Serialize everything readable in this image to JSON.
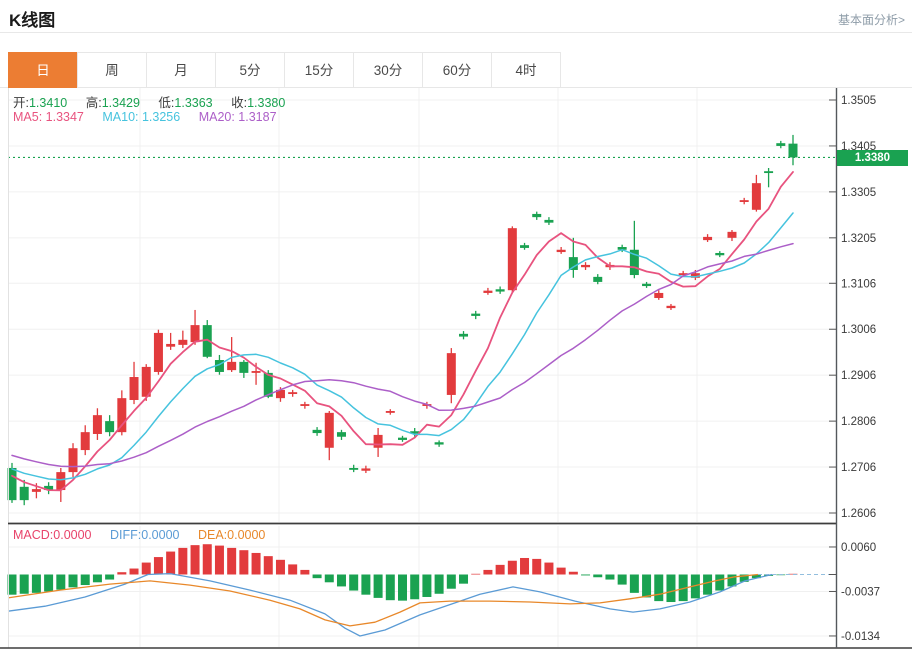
{
  "header": {
    "title": "K线图",
    "link": "基本面分析>"
  },
  "tabs": {
    "active_index": 0,
    "items": [
      {
        "label": "日"
      },
      {
        "label": "周"
      },
      {
        "label": "月"
      },
      {
        "label": "5分"
      },
      {
        "label": "15分"
      },
      {
        "label": "30分"
      },
      {
        "label": "60分"
      },
      {
        "label": "4时"
      }
    ]
  },
  "legend": {
    "open_label": "开:",
    "open_value": "1.3410",
    "high_label": "高:",
    "high_value": "1.3429",
    "low_label": "低:",
    "low_value": "1.3363",
    "close_label": "收:",
    "close_value": "1.3380",
    "ma5": "MA5: 1.3347",
    "ma10": "MA10: 1.3256",
    "ma20": "MA20: 1.3187"
  },
  "macd_legend": {
    "macd": "MACD:0.0000",
    "diff": "DIFF:0.0000",
    "dea": "DEA:0.0000"
  },
  "price_badge": "1.3380",
  "colors": {
    "up": "#e23b3d",
    "down": "#1aa251",
    "accent_tab": "#ec7d33",
    "ma5": "#e8537f",
    "ma10": "#46c3de",
    "ma20": "#ac5fc8",
    "diff_line": "#5b9bd5",
    "dea_line": "#e8882a",
    "grid": "#f0f0f0",
    "axis": "#54585c",
    "badge_bg": "#1aa251",
    "price_dotted_line": "#1aa251",
    "zero_dashed_line": "#92bede"
  },
  "chart_data": {
    "type": "candlestick+macd",
    "title": "K线图",
    "price_axis": {
      "labels": [
        "1.3505",
        "1.3405",
        "1.3305",
        "1.3205",
        "1.3106",
        "1.3006",
        "1.2906",
        "1.2806",
        "1.2706",
        "1.2606"
      ],
      "top_value": 1.3505,
      "bottom_value": 1.2606
    },
    "current_price": 1.338,
    "ohlc_current": {
      "open": 1.341,
      "high": 1.3429,
      "low": 1.3363,
      "close": 1.338
    },
    "ma_values": {
      "ma5": 1.3347,
      "ma10": 1.3256,
      "ma20": 1.3187
    },
    "ma_periods": [
      5,
      10,
      20
    ],
    "ma_seed_closes": [
      1.2788,
      1.2782,
      1.2776,
      1.277,
      1.2764,
      1.2758,
      1.2752,
      1.2746,
      1.274,
      1.2734,
      1.2728,
      1.2722,
      1.2716,
      1.2711,
      1.2707,
      1.2704,
      1.2701,
      1.2699,
      1.2697
    ],
    "candles": [
      [
        1.2704,
        1.2715,
        1.2628,
        1.2634
      ],
      [
        1.2663,
        1.2678,
        1.2623,
        1.2634
      ],
      [
        1.2652,
        1.2671,
        1.2638,
        1.2658
      ],
      [
        1.2665,
        1.2673,
        1.2647,
        1.2656
      ],
      [
        1.2656,
        1.2704,
        1.263,
        1.2695
      ],
      [
        1.2695,
        1.2758,
        1.2684,
        1.2747
      ],
      [
        1.2743,
        1.2797,
        1.2732,
        1.2782
      ],
      [
        1.2778,
        1.2834,
        1.2765,
        1.2819
      ],
      [
        1.2806,
        1.2819,
        1.2773,
        1.2782
      ],
      [
        1.2782,
        1.2873,
        1.2775,
        1.2856
      ],
      [
        1.2852,
        1.2935,
        1.2843,
        1.2902
      ],
      [
        1.2859,
        1.293,
        1.285,
        1.2924
      ],
      [
        1.2913,
        1.3005,
        1.2907,
        1.2998
      ],
      [
        1.2968,
        1.2998,
        1.2961,
        1.2974
      ],
      [
        1.2972,
        1.3003,
        1.2965,
        1.2983
      ],
      [
        1.2978,
        1.3048,
        1.2972,
        1.3015
      ],
      [
        1.3015,
        1.3026,
        1.2943,
        1.2946
      ],
      [
        1.2939,
        1.295,
        1.2907,
        1.2913
      ],
      [
        1.2917,
        1.2989,
        1.2913,
        1.2935
      ],
      [
        1.2935,
        1.2939,
        1.29,
        1.2911
      ],
      [
        1.2911,
        1.2933,
        1.2885,
        1.2915
      ],
      [
        1.2911,
        1.2917,
        1.2856,
        1.2859
      ],
      [
        1.2856,
        1.288,
        1.2848,
        1.2874
      ],
      [
        1.2865,
        1.2874,
        1.2859,
        1.2869
      ],
      [
        1.2839,
        1.2848,
        1.2833,
        1.2843
      ],
      [
        1.2787,
        1.2793,
        1.2774,
        1.278
      ],
      [
        1.2748,
        1.2828,
        1.2721,
        1.2824
      ],
      [
        1.2782,
        1.2787,
        1.2765,
        1.2772
      ],
      [
        1.2704,
        1.2711,
        1.2695,
        1.27
      ],
      [
        1.2698,
        1.2709,
        1.2693,
        1.2703
      ],
      [
        1.2748,
        1.2791,
        1.2728,
        1.2776
      ],
      [
        1.2824,
        1.2832,
        1.282,
        1.2828
      ],
      [
        1.277,
        1.2774,
        1.2761,
        1.2765
      ],
      [
        1.2784,
        1.2791,
        1.2772,
        1.2779
      ],
      [
        1.2839,
        1.2848,
        1.2833,
        1.2843
      ],
      [
        1.276,
        1.2764,
        1.275,
        1.2755
      ],
      [
        1.2863,
        1.2965,
        1.2845,
        1.2954
      ],
      [
        1.2996,
        1.3002,
        1.2984,
        1.299
      ],
      [
        1.304,
        1.3046,
        1.3028,
        1.3035
      ],
      [
        1.3085,
        1.3096,
        1.3081,
        1.309
      ],
      [
        1.3093,
        1.3099,
        1.3083,
        1.3088
      ],
      [
        1.3091,
        1.323,
        1.3087,
        1.3226
      ],
      [
        1.3189,
        1.3194,
        1.3179,
        1.3183
      ],
      [
        1.3257,
        1.3262,
        1.3244,
        1.325
      ],
      [
        1.3244,
        1.325,
        1.3233,
        1.3238
      ],
      [
        1.3174,
        1.3185,
        1.317,
        1.3179
      ],
      [
        1.3163,
        1.3205,
        1.3118,
        1.3135
      ],
      [
        1.3141,
        1.3152,
        1.3135,
        1.3146
      ],
      [
        1.312,
        1.3126,
        1.3104,
        1.3109
      ],
      [
        1.3141,
        1.3152,
        1.3135,
        1.3146
      ],
      [
        1.3185,
        1.319,
        1.3174,
        1.3179
      ],
      [
        1.3179,
        1.3242,
        1.3117,
        1.3124
      ],
      [
        1.3105,
        1.3109,
        1.3096,
        1.31
      ],
      [
        1.3074,
        1.3091,
        1.307,
        1.3085
      ],
      [
        1.3052,
        1.3061,
        1.3048,
        1.3057
      ],
      [
        1.3124,
        1.3133,
        1.312,
        1.3128
      ],
      [
        1.3118,
        1.3135,
        1.3113,
        1.3128
      ],
      [
        1.32,
        1.3213,
        1.3196,
        1.3207
      ],
      [
        1.3172,
        1.3176,
        1.3163,
        1.3167
      ],
      [
        1.3205,
        1.3222,
        1.3198,
        1.3218
      ],
      [
        1.3283,
        1.3292,
        1.3278,
        1.3287
      ],
      [
        1.3266,
        1.3342,
        1.3262,
        1.3324
      ],
      [
        1.335,
        1.3357,
        1.3315,
        1.3346
      ],
      [
        1.3411,
        1.3416,
        1.34,
        1.3405
      ],
      [
        1.341,
        1.3429,
        1.3363,
        1.338
      ]
    ],
    "macd": {
      "axis_labels": [
        "0.0060",
        "-0.0037",
        "-0.0134"
      ],
      "axis_values": [
        0.006,
        -0.0037,
        -0.0134
      ],
      "current": {
        "macd": 0.0,
        "diff": 0.0,
        "dea": 0.0
      },
      "bars": [
        -0.0044,
        -0.0042,
        -0.004,
        -0.0037,
        -0.0033,
        -0.0028,
        -0.0023,
        -0.0017,
        -0.0011,
        0.0005,
        0.0013,
        0.0026,
        0.0038,
        0.005,
        0.0058,
        0.0064,
        0.0066,
        0.0063,
        0.0058,
        0.0053,
        0.0047,
        0.004,
        0.0032,
        0.0022,
        0.001,
        -0.0008,
        -0.0017,
        -0.0026,
        -0.0035,
        -0.0044,
        -0.0051,
        -0.0056,
        -0.0057,
        -0.0054,
        -0.0049,
        -0.0042,
        -0.0031,
        -0.002,
        0.0001,
        0.001,
        0.0021,
        0.003,
        0.0036,
        0.0034,
        0.0026,
        0.0015,
        0.0006,
        -0.0002,
        -0.0006,
        -0.0011,
        -0.0022,
        -0.004,
        -0.005,
        -0.0058,
        -0.006,
        -0.0058,
        -0.0052,
        -0.0044,
        -0.0035,
        -0.0026,
        -0.0016,
        -0.0008,
        -0.0003,
        -0.0001,
        0.0
      ],
      "diff_points": [
        [
          8,
          -0.008
        ],
        [
          45,
          -0.0069
        ],
        [
          85,
          -0.0049
        ],
        [
          125,
          -0.0021
        ],
        [
          148,
          0.0
        ],
        [
          170,
          0.0002
        ],
        [
          210,
          -0.0014
        ],
        [
          250,
          -0.0034
        ],
        [
          290,
          -0.0056
        ],
        [
          325,
          -0.0086
        ],
        [
          345,
          -0.0117
        ],
        [
          360,
          -0.0134
        ],
        [
          385,
          -0.0121
        ],
        [
          420,
          -0.0088
        ],
        [
          455,
          -0.0062
        ],
        [
          480,
          -0.0043
        ],
        [
          513,
          -0.0027
        ],
        [
          540,
          -0.0038
        ],
        [
          575,
          -0.0058
        ],
        [
          610,
          -0.0075
        ],
        [
          633,
          -0.0082
        ],
        [
          660,
          -0.0075
        ],
        [
          690,
          -0.006
        ],
        [
          720,
          -0.0038
        ],
        [
          745,
          -0.0014
        ],
        [
          772,
          0.0
        ]
      ],
      "dea_points": [
        [
          8,
          -0.0051
        ],
        [
          60,
          -0.0034
        ],
        [
          110,
          -0.0021
        ],
        [
          150,
          -0.0014
        ],
        [
          190,
          -0.0023
        ],
        [
          230,
          -0.0036
        ],
        [
          270,
          -0.0056
        ],
        [
          300,
          -0.0075
        ],
        [
          325,
          -0.0099
        ],
        [
          350,
          -0.0112
        ],
        [
          375,
          -0.0104
        ],
        [
          400,
          -0.0082
        ],
        [
          420,
          -0.0062
        ],
        [
          450,
          -0.0058
        ],
        [
          490,
          -0.0058
        ],
        [
          530,
          -0.006
        ],
        [
          570,
          -0.0064
        ],
        [
          600,
          -0.0062
        ],
        [
          630,
          -0.0053
        ],
        [
          660,
          -0.0043
        ],
        [
          690,
          -0.0027
        ],
        [
          715,
          -0.0014
        ],
        [
          735,
          -0.0005
        ],
        [
          758,
          0.0
        ]
      ]
    }
  }
}
